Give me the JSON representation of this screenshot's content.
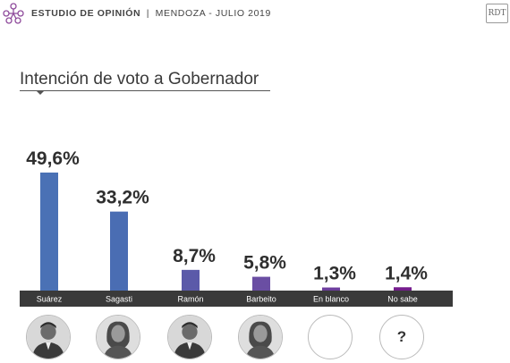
{
  "header": {
    "title_bold": "ESTUDIO DE OPINIÓN",
    "separator": "|",
    "subtitle": "MENDOZA - JULIO 2019",
    "badge": "RDT",
    "logo_icon": "people-network-icon"
  },
  "chart_data": {
    "type": "bar",
    "title": "Intención de voto a Gobernador",
    "categories": [
      "Suárez",
      "Sagasti",
      "Ramón",
      "Barbeito",
      "En blanco",
      "No sabe"
    ],
    "values": [
      49.6,
      33.2,
      8.7,
      5.8,
      1.3,
      1.4
    ],
    "value_labels": [
      "49,6%",
      "33,2%",
      "8,7%",
      "5,8%",
      "1,3%",
      "1,4%"
    ],
    "colors": [
      "#4a71b5",
      "#4a6db3",
      "#5b5aa9",
      "#6a4ea3",
      "#6d3e9e",
      "#751d8d"
    ],
    "ylim": [
      0,
      50
    ],
    "grid": false,
    "legend": "none",
    "category_bar_color": "#3a3a3a"
  },
  "avatars": [
    {
      "name": "Suárez",
      "icon": "man-portrait-icon"
    },
    {
      "name": "Sagasti",
      "icon": "woman-portrait-icon"
    },
    {
      "name": "Ramón",
      "icon": "man-portrait-icon"
    },
    {
      "name": "Barbeito",
      "icon": "woman-portrait-icon"
    },
    {
      "name": "En blanco",
      "icon": "empty-circle-icon"
    },
    {
      "name": "No sabe",
      "icon": "question-mark-icon",
      "label": "?"
    }
  ]
}
